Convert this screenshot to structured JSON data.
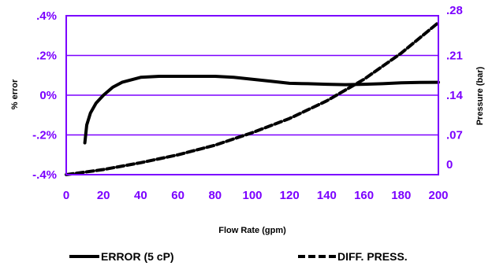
{
  "chart_data": {
    "type": "line",
    "title": "",
    "xlabel": "Flow Rate (gpm)",
    "ylabel": "% error",
    "y2label": "Pressure (bar)",
    "xlim": [
      0,
      200
    ],
    "ylim": [
      -0.4,
      0.4
    ],
    "y2lim": [
      0,
      0.28
    ],
    "grid": true,
    "legend_position": "bottom",
    "x_tick_labels": [
      "0",
      "20",
      "40",
      "60",
      "80",
      "100",
      "120",
      "140",
      "160",
      "180",
      "200"
    ],
    "y_tick_labels": [
      ".4%",
      ".2%",
      "0%",
      "-.2%",
      "-.4%"
    ],
    "y2_tick_labels": [
      ".28",
      ".21",
      ".14",
      ".07",
      "0"
    ],
    "series": [
      {
        "name": "ERROR (5 cP)",
        "axis": "left",
        "style": "solid",
        "x": [
          10,
          11,
          13,
          16,
          20,
          25,
          30,
          40,
          50,
          60,
          70,
          80,
          90,
          100,
          110,
          120,
          130,
          140,
          150,
          160,
          170,
          180,
          190,
          200
        ],
        "y": [
          -0.24,
          -0.15,
          -0.09,
          -0.04,
          0.0,
          0.04,
          0.065,
          0.09,
          0.095,
          0.095,
          0.095,
          0.095,
          0.09,
          0.08,
          0.07,
          0.06,
          0.058,
          0.055,
          0.053,
          0.055,
          0.058,
          0.062,
          0.064,
          0.065
        ]
      },
      {
        "name": "DIFF. PRESS.",
        "axis": "right",
        "style": "dashed",
        "x": [
          0,
          20,
          40,
          60,
          80,
          100,
          120,
          140,
          160,
          180,
          200
        ],
        "y": [
          0.0,
          0.009,
          0.021,
          0.035,
          0.052,
          0.074,
          0.099,
          0.13,
          0.168,
          0.214,
          0.268
        ]
      }
    ]
  },
  "colors": {
    "axis": "#7b00ff",
    "grid": "#7b00ff",
    "series": "#000000"
  }
}
